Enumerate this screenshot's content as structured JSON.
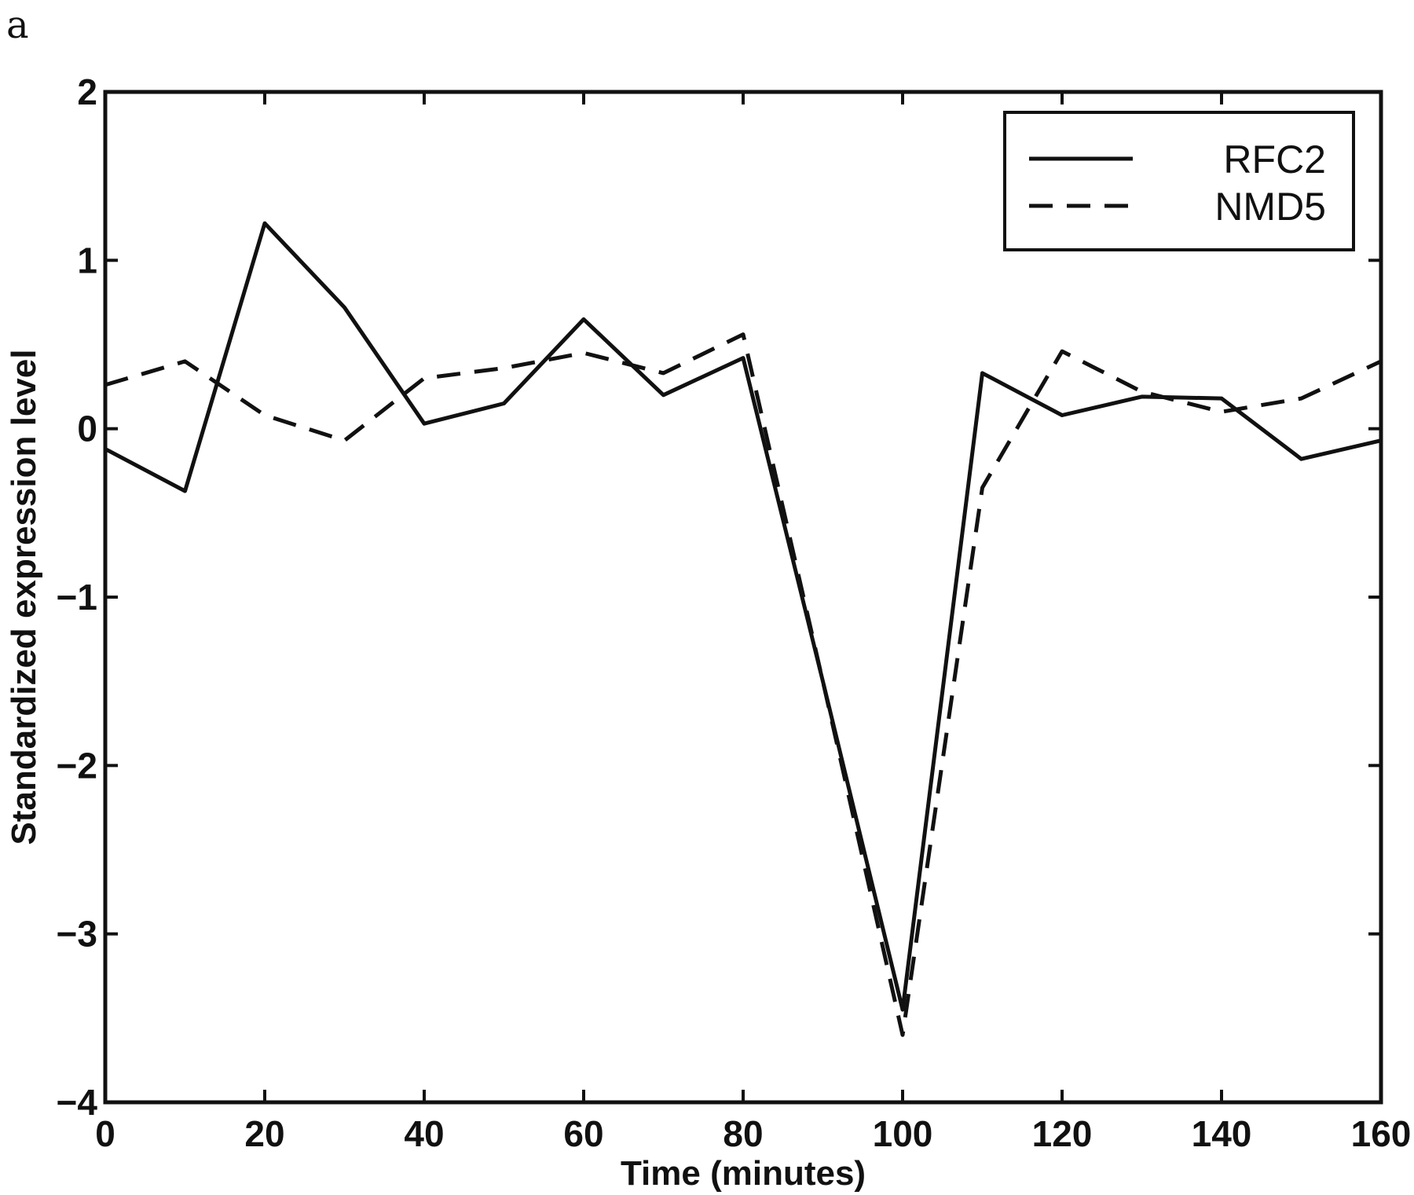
{
  "panel_label": "a",
  "chart_data": {
    "type": "line",
    "title": "",
    "xlabel": "Time (minutes)",
    "ylabel": "Standardized expression level",
    "xlim": [
      0,
      160
    ],
    "ylim": [
      -4,
      2
    ],
    "xticks": [
      0,
      20,
      40,
      60,
      80,
      100,
      120,
      140,
      160
    ],
    "yticks": [
      2,
      1,
      0,
      -1,
      -2,
      -3,
      -4
    ],
    "xtick_labels": [
      "0",
      "20",
      "40",
      "60",
      "80",
      "100",
      "120",
      "140",
      "160"
    ],
    "ytick_labels": [
      "2",
      "1",
      "0",
      "−1",
      "−2",
      "−3",
      "−4"
    ],
    "grid": false,
    "legend_position": "top-right",
    "x": [
      0,
      10,
      20,
      30,
      40,
      50,
      60,
      70,
      80,
      90,
      100,
      110,
      120,
      130,
      140,
      150,
      160
    ],
    "series": [
      {
        "name": "RFC2",
        "style": "solid",
        "color": "#111111",
        "values": [
          -0.12,
          -0.37,
          1.22,
          0.72,
          0.03,
          0.15,
          0.65,
          0.2,
          0.42,
          -1.5,
          -3.45,
          0.33,
          0.08,
          0.19,
          0.18,
          -0.18,
          -0.07
        ]
      },
      {
        "name": "NMD5",
        "style": "dashed",
        "color": "#111111",
        "values": [
          0.26,
          0.4,
          0.08,
          -0.07,
          0.3,
          0.36,
          0.45,
          0.33,
          0.56,
          -1.5,
          -3.6,
          -0.35,
          0.46,
          0.22,
          0.1,
          0.18,
          0.4
        ]
      }
    ]
  }
}
